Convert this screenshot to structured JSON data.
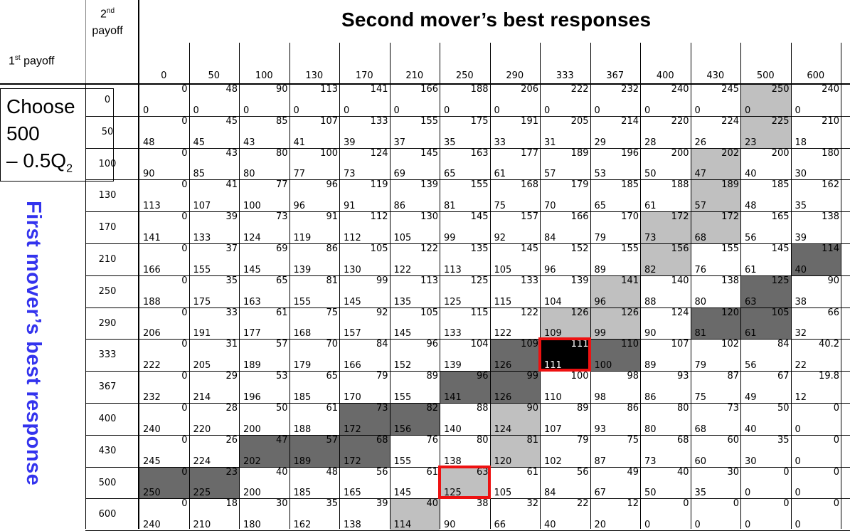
{
  "title": "Second mover’s best responses",
  "second_payoff_label": {
    "text": "2",
    "sup": "nd",
    "line2": "payoff"
  },
  "first_payoff_label": {
    "text": "1",
    "sup": "st",
    "line2": "payoff"
  },
  "choose_box": {
    "line1": "Choose",
    "line2": "500",
    "line3_prefix": "– 0.5Q",
    "line3_sub": "2"
  },
  "side_label": "First mover’s best response",
  "col_headers": [
    "0",
    "50",
    "100",
    "130",
    "170",
    "210",
    "250",
    "290",
    "333",
    "367",
    "400",
    "430",
    "500",
    "600"
  ],
  "row_headers": [
    "0",
    "50",
    "100",
    "130",
    "170",
    "210",
    "250",
    "290",
    "333",
    "367",
    "400",
    "430",
    "500",
    "600"
  ],
  "grid_first": [
    [
      "0",
      "0",
      "0",
      "0",
      "0",
      "0",
      "0",
      "0",
      "0",
      "0",
      "0",
      "0",
      "0",
      "0"
    ],
    [
      "48",
      "45",
      "43",
      "41",
      "39",
      "37",
      "35",
      "33",
      "31",
      "29",
      "28",
      "26",
      "23",
      "18"
    ],
    [
      "90",
      "85",
      "80",
      "77",
      "73",
      "69",
      "65",
      "61",
      "57",
      "53",
      "50",
      "47",
      "40",
      "30"
    ],
    [
      "113",
      "107",
      "100",
      "96",
      "91",
      "86",
      "81",
      "75",
      "70",
      "65",
      "61",
      "57",
      "48",
      "35"
    ],
    [
      "141",
      "133",
      "124",
      "119",
      "112",
      "105",
      "99",
      "92",
      "84",
      "79",
      "73",
      "68",
      "56",
      "39"
    ],
    [
      "166",
      "155",
      "145",
      "139",
      "130",
      "122",
      "113",
      "105",
      "96",
      "89",
      "82",
      "76",
      "61",
      "40"
    ],
    [
      "188",
      "175",
      "163",
      "155",
      "145",
      "135",
      "125",
      "115",
      "104",
      "96",
      "88",
      "80",
      "63",
      "38"
    ],
    [
      "206",
      "191",
      "177",
      "168",
      "157",
      "145",
      "133",
      "122",
      "109",
      "99",
      "90",
      "81",
      "61",
      "32"
    ],
    [
      "222",
      "205",
      "189",
      "179",
      "166",
      "152",
      "139",
      "126",
      "111",
      "100",
      "89",
      "79",
      "56",
      "22"
    ],
    [
      "232",
      "214",
      "196",
      "185",
      "170",
      "155",
      "141",
      "126",
      "110",
      "98",
      "86",
      "75",
      "49",
      "12"
    ],
    [
      "240",
      "220",
      "200",
      "188",
      "172",
      "156",
      "140",
      "124",
      "107",
      "93",
      "80",
      "68",
      "40",
      "0"
    ],
    [
      "245",
      "224",
      "202",
      "189",
      "172",
      "155",
      "138",
      "120",
      "102",
      "87",
      "73",
      "60",
      "30",
      "0"
    ],
    [
      "250",
      "225",
      "200",
      "185",
      "165",
      "145",
      "125",
      "105",
      "84",
      "67",
      "50",
      "35",
      "0",
      "0"
    ],
    [
      "240",
      "210",
      "180",
      "162",
      "138",
      "114",
      "90",
      "66",
      "40",
      "20",
      "0",
      "0",
      "0",
      "0"
    ]
  ],
  "grid_second": [
    [
      "0",
      "48",
      "90",
      "113",
      "141",
      "166",
      "188",
      "206",
      "222",
      "232",
      "240",
      "245",
      "250",
      "240"
    ],
    [
      "0",
      "45",
      "85",
      "107",
      "133",
      "155",
      "175",
      "191",
      "205",
      "214",
      "220",
      "224",
      "225",
      "210"
    ],
    [
      "0",
      "43",
      "80",
      "100",
      "124",
      "145",
      "163",
      "177",
      "189",
      "196",
      "200",
      "202",
      "200",
      "180"
    ],
    [
      "0",
      "41",
      "77",
      "96",
      "119",
      "139",
      "155",
      "168",
      "179",
      "185",
      "188",
      "189",
      "185",
      "162"
    ],
    [
      "0",
      "39",
      "73",
      "91",
      "112",
      "130",
      "145",
      "157",
      "166",
      "170",
      "172",
      "172",
      "165",
      "138"
    ],
    [
      "0",
      "37",
      "69",
      "86",
      "105",
      "122",
      "135",
      "145",
      "152",
      "155",
      "156",
      "155",
      "145",
      "114"
    ],
    [
      "0",
      "35",
      "65",
      "81",
      "99",
      "113",
      "125",
      "133",
      "139",
      "141",
      "140",
      "138",
      "125",
      "90"
    ],
    [
      "0",
      "33",
      "61",
      "75",
      "92",
      "105",
      "115",
      "122",
      "126",
      "126",
      "124",
      "120",
      "105",
      "66"
    ],
    [
      "0",
      "31",
      "57",
      "70",
      "84",
      "96",
      "104",
      "109",
      "111",
      "110",
      "107",
      "102",
      "84",
      "40.2"
    ],
    [
      "0",
      "29",
      "53",
      "65",
      "79",
      "89",
      "96",
      "99",
      "100",
      "98",
      "93",
      "87",
      "67",
      "19.8"
    ],
    [
      "0",
      "28",
      "50",
      "61",
      "73",
      "82",
      "88",
      "90",
      "89",
      "86",
      "80",
      "73",
      "50",
      "0"
    ],
    [
      "0",
      "26",
      "47",
      "57",
      "68",
      "76",
      "80",
      "81",
      "79",
      "75",
      "68",
      "60",
      "35",
      "0"
    ],
    [
      "0",
      "23",
      "40",
      "48",
      "56",
      "61",
      "63",
      "61",
      "56",
      "49",
      "40",
      "30",
      "0",
      "0"
    ],
    [
      "0",
      "18",
      "30",
      "35",
      "39",
      "40",
      "38",
      "32",
      "22",
      "12",
      "0",
      "0",
      "0",
      "0"
    ]
  ],
  "grid_shade": [
    "............g.",
    "............g.",
    "...........g..",
    "...........g..",
    "..........gg..",
    "..........g..d",
    ".........g..d.",
    "........gg.dd.",
    ".......dbd....",
    "......dd......",
    "....dd.g......",
    "..ddd..g......",
    "dd....g.......",
    ".....g........"
  ],
  "colors": {
    "light": "#c0c0c0",
    "dark": "#6a6a6a",
    "black": "#000000",
    "highlight": "#ee1111",
    "side_label": "#3333ee"
  },
  "highlights": [
    {
      "row": 8,
      "col": 8
    },
    {
      "row": 12,
      "col": 6
    }
  ]
}
